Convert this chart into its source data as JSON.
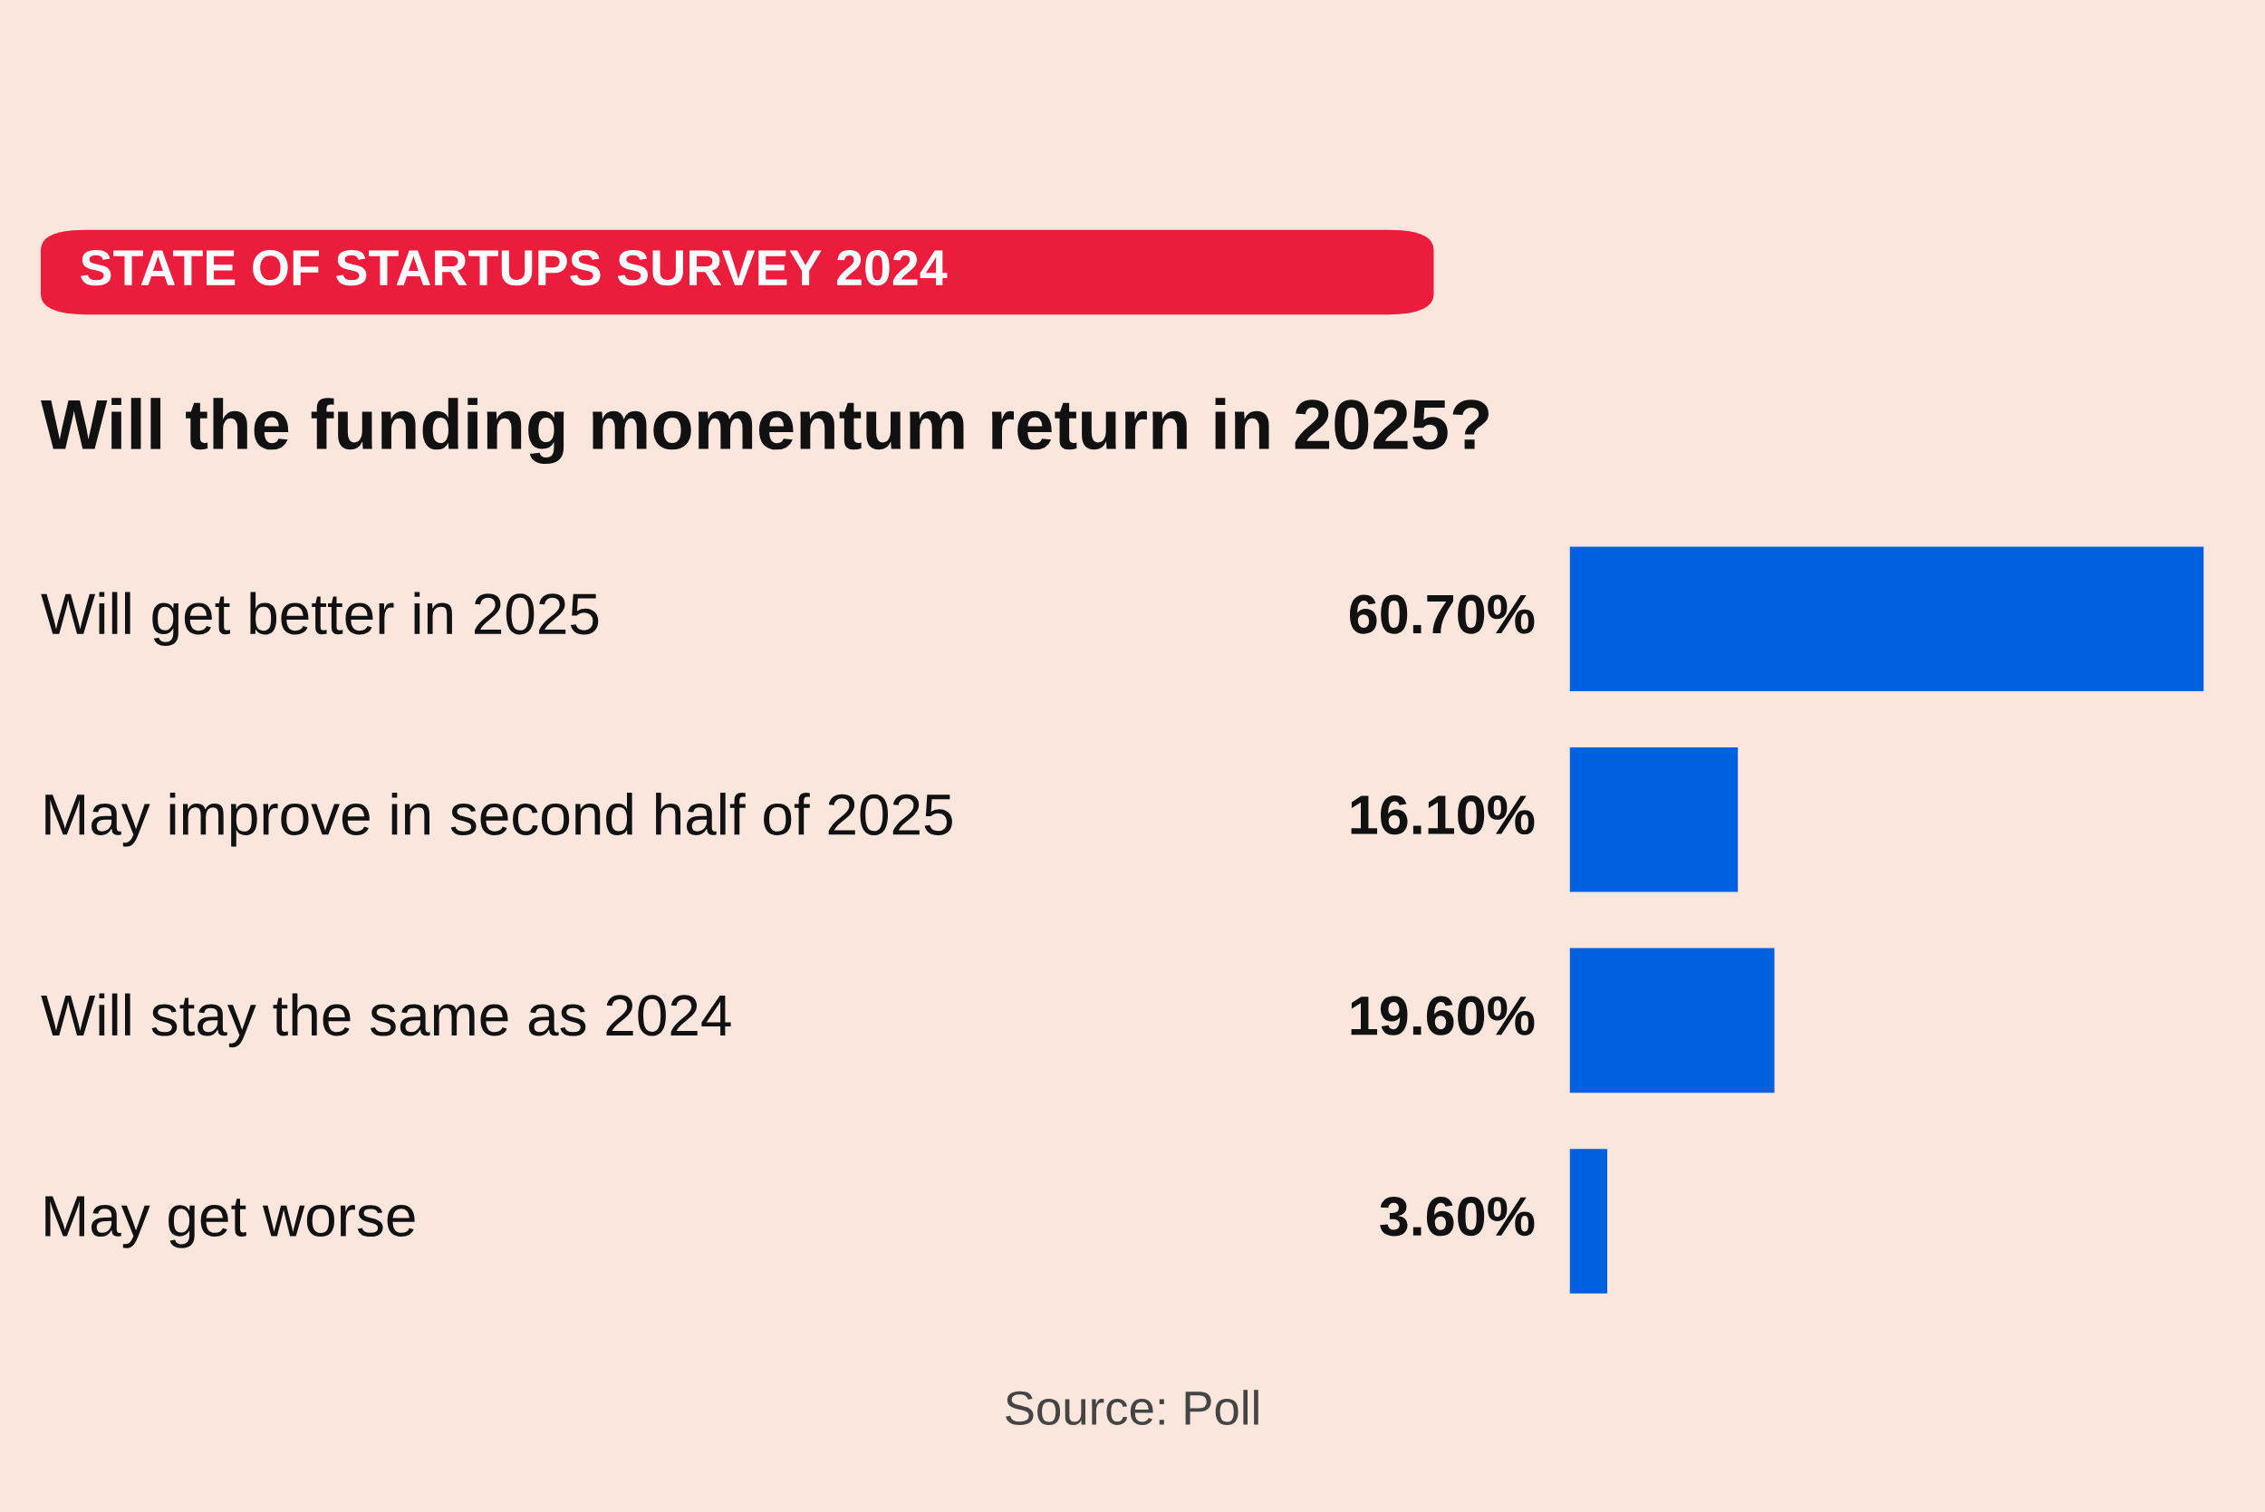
{
  "chart_data": {
    "type": "bar",
    "orientation": "horizontal",
    "title": "Will the funding momentum return in 2025?",
    "subtitle": "STATE OF STARTUPS SURVEY 2024",
    "categories": [
      "Will get better in 2025",
      "May improve in second half of 2025",
      "Will stay the same as 2024",
      "May get worse"
    ],
    "values": [
      60.7,
      16.1,
      19.6,
      3.6
    ],
    "color": "#0061e0",
    "value_labels": [
      "60.70%",
      "16.10%",
      "19.60%",
      "3.60%"
    ],
    "annotations": [
      "Source: Poll"
    ]
  }
}
